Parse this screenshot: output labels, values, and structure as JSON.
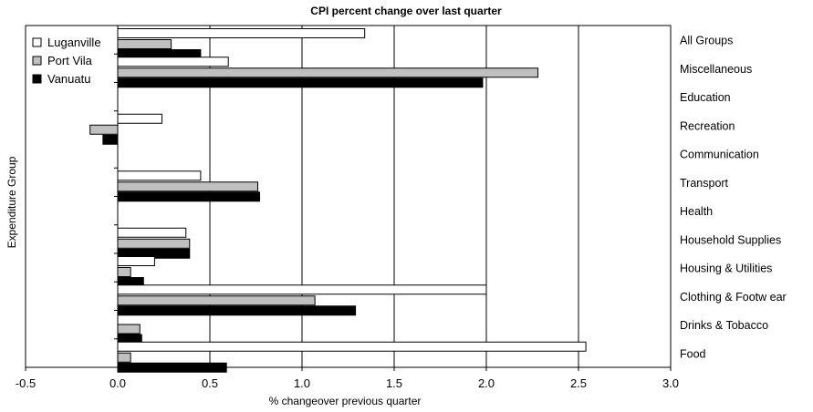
{
  "chart_data": {
    "type": "bar",
    "orientation": "horizontal",
    "title": "CPI percent change over last quarter",
    "xlabel": "% changeover previous quarter",
    "ylabel": "Expenditure Group",
    "xlim": [
      -0.5,
      3.0
    ],
    "xticks": [
      "-0.5",
      "0.0",
      "0.5",
      "1.0",
      "1.5",
      "2.0",
      "2.5",
      "3.0"
    ],
    "xtick_values": [
      -0.5,
      0.0,
      0.5,
      1.0,
      1.5,
      2.0,
      2.5,
      3.0
    ],
    "grid": "vertical",
    "legend_position": "top-left",
    "categories": [
      "All Groups",
      "Miscellaneous",
      "Education",
      "Recreation",
      "Communication",
      "Transport",
      "Health",
      "Household Supplies",
      "Housing & Utilities",
      "Clothing  & Footw ear",
      "Drinks  & Tobacco",
      "Food"
    ],
    "series": [
      {
        "name": "Luganville",
        "color": "#ffffff",
        "values": [
          1.34,
          0.6,
          0.0,
          0.24,
          0.0,
          0.45,
          0.0,
          0.37,
          0.2,
          2.0,
          0.0,
          2.54
        ]
      },
      {
        "name": "Port Vila",
        "color": "#c0c0c0",
        "values": [
          0.29,
          2.28,
          0.0,
          -0.15,
          0.0,
          0.76,
          0.0,
          0.39,
          0.07,
          1.07,
          0.12,
          0.07
        ]
      },
      {
        "name": "Vanuatu",
        "color": "#000000",
        "values": [
          0.45,
          1.98,
          0.0,
          -0.08,
          0.0,
          0.77,
          0.0,
          0.39,
          0.14,
          1.29,
          0.13,
          0.59
        ]
      }
    ]
  }
}
